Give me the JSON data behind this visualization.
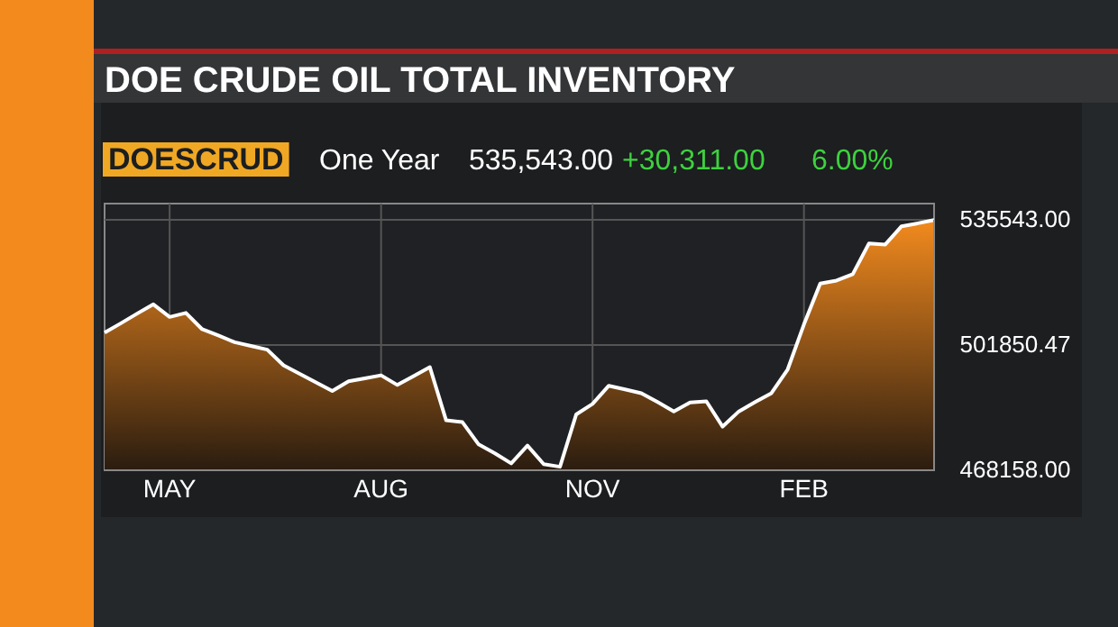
{
  "chart_data": {
    "type": "area",
    "title": "DOE CRUDE OIL TOTAL INVENTORY",
    "annotations": [
      "DOESCRUD",
      "One Year",
      "535,543.00",
      "+30,311.00",
      "6.00%"
    ],
    "categories": [
      null,
      null,
      null,
      null,
      "MAY",
      null,
      null,
      null,
      null,
      null,
      null,
      null,
      null,
      null,
      null,
      null,
      null,
      "AUG",
      null,
      null,
      null,
      null,
      null,
      null,
      null,
      null,
      null,
      null,
      null,
      null,
      "NOV",
      null,
      null,
      null,
      null,
      null,
      null,
      null,
      null,
      null,
      null,
      null,
      null,
      "FEB",
      null,
      null,
      null,
      null,
      null,
      null,
      null,
      null
    ],
    "series": [
      {
        "color": "#f28a1e",
        "values": [
          505200,
          507700,
          510300,
          512800,
          509400,
          510500,
          506100,
          504400,
          502600,
          501600,
          500600,
          496400,
          494100,
          491800,
          489500,
          492100,
          492900,
          493700,
          491100,
          493500,
          495900,
          481600,
          481100,
          475100,
          472700,
          470000,
          474800,
          469800,
          469100,
          483200,
          486000,
          490900,
          489900,
          488900,
          486500,
          484000,
          486400,
          486700,
          479900,
          484000,
          486500,
          488900,
          495300,
          507400,
          518400,
          519200,
          520900,
          529200,
          528900,
          533800,
          534600,
          535500
        ]
      }
    ],
    "ylim": [
      468158,
      535543
    ],
    "yticks": [
      {
        "value": 468158,
        "label": "468158.00"
      },
      {
        "value": 501850.47,
        "label": "501850.47"
      },
      {
        "value": 535543,
        "label": "535543.00"
      }
    ],
    "grid": true
  }
}
